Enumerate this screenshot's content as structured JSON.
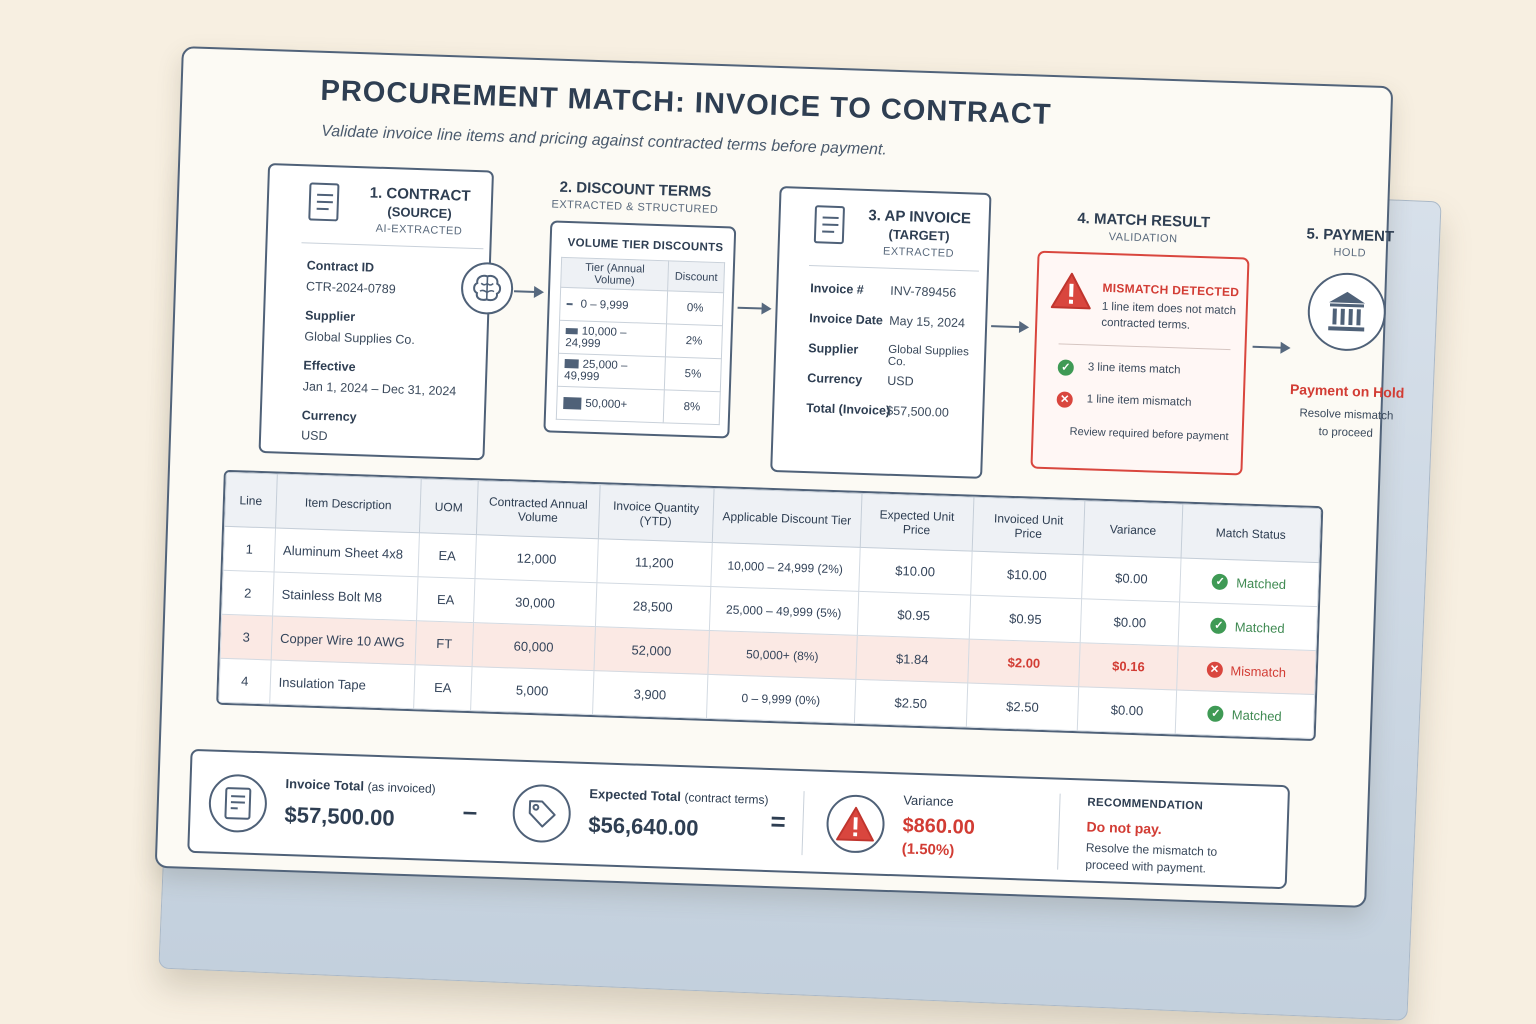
{
  "header": {
    "title": "PROCUREMENT MATCH: INVOICE TO CONTRACT",
    "subtitle": "Validate invoice line items and pricing against contracted terms before payment."
  },
  "contract": {
    "title_line1": "1. CONTRACT",
    "title_line2": "(SOURCE)",
    "sub": "AI-EXTRACTED",
    "fields": [
      {
        "label": "Contract ID",
        "value": "CTR-2024-0789"
      },
      {
        "label": "Supplier",
        "value": "Global Supplies Co."
      },
      {
        "label": "Effective",
        "value": "Jan 1, 2024 – Dec 31, 2024"
      },
      {
        "label": "Currency",
        "value": "USD"
      }
    ],
    "icon": "document-icon"
  },
  "ai_icon": "brain-icon",
  "discount": {
    "title": "2. DISCOUNT TERMS",
    "sub": "EXTRACTED & STRUCTURED",
    "table_title": "VOLUME TIER DISCOUNTS",
    "col_tier": "Tier (Annual Volume)",
    "col_discount": "Discount",
    "tiers": [
      {
        "range": "0 – 9,999",
        "discount": "0%"
      },
      {
        "range": "10,000 – 24,999",
        "discount": "2%"
      },
      {
        "range": "25,000 – 49,999",
        "discount": "5%"
      },
      {
        "range": "50,000+",
        "discount": "8%"
      }
    ]
  },
  "invoice": {
    "title_line1": "3. AP INVOICE",
    "title_line2": "(TARGET)",
    "sub": "EXTRACTED",
    "fields": [
      {
        "label": "Invoice #",
        "value": "INV-789456"
      },
      {
        "label": "Invoice Date",
        "value": "May 15, 2024"
      },
      {
        "label": "Supplier",
        "value": "Global Supplies Co."
      },
      {
        "label": "Currency",
        "value": "USD"
      },
      {
        "label": "Total (Invoice)",
        "value": "$57,500.00"
      }
    ]
  },
  "match": {
    "title": "4. MATCH RESULT",
    "sub": "VALIDATION",
    "alert_title": "MISMATCH DETECTED",
    "alert_text_1": "1 line item does not match",
    "alert_text_2": "contracted terms.",
    "ok_text": "3 line items match",
    "bad_text": "1 line item mismatch",
    "footer": "Review required before payment"
  },
  "payment": {
    "title": "5. PAYMENT",
    "sub": "HOLD",
    "status": "Payment on Hold",
    "note_1": "Resolve mismatch",
    "note_2": "to proceed",
    "icon": "bank-icon"
  },
  "table": {
    "headers": [
      "Line",
      "Item Description",
      "UOM",
      "Contracted Annual Volume",
      "Invoice Quantity (YTD)",
      "Applicable Discount Tier",
      "Expected Unit Price",
      "Invoiced Unit Price",
      "Variance",
      "Match Status"
    ],
    "rows": [
      {
        "line": "1",
        "item": "Aluminum Sheet 4x8",
        "uom": "EA",
        "contracted": "12,000",
        "qty": "11,200",
        "tier": "10,000 – 24,999 (2%)",
        "expected": "$10.00",
        "invoiced": "$10.00",
        "variance": "$0.00",
        "status": "Matched"
      },
      {
        "line": "2",
        "item": "Stainless Bolt M8",
        "uom": "EA",
        "contracted": "30,000",
        "qty": "28,500",
        "tier": "25,000 – 49,999 (5%)",
        "expected": "$0.95",
        "invoiced": "$0.95",
        "variance": "$0.00",
        "status": "Matched"
      },
      {
        "line": "3",
        "item": "Copper Wire 10 AWG",
        "uom": "FT",
        "contracted": "60,000",
        "qty": "52,000",
        "tier": "50,000+ (8%)",
        "expected": "$1.84",
        "invoiced": "$2.00",
        "variance": "$0.16",
        "status": "Mismatch"
      },
      {
        "line": "4",
        "item": "Insulation Tape",
        "uom": "EA",
        "contracted": "5,000",
        "qty": "3,900",
        "tier": "0 – 9,999 (0%)",
        "expected": "$2.50",
        "invoiced": "$2.50",
        "variance": "$0.00",
        "status": "Matched"
      }
    ]
  },
  "summary": {
    "invoice_label": "Invoice Total",
    "invoice_label_note": "(as invoiced)",
    "invoice_value": "$57,500.00",
    "minus": "–",
    "expected_label": "Expected Total",
    "expected_label_note": "(contract terms)",
    "expected_value": "$56,640.00",
    "equals": "=",
    "variance_label": "Variance",
    "variance_value": "$860.00",
    "variance_pct": "(1.50%)",
    "rec_title": "RECOMMENDATION",
    "rec_main": "Do not pay.",
    "rec_text_1": "Resolve the mismatch to",
    "rec_text_2": "proceed with payment."
  },
  "colors": {
    "accent_red": "#d23c34",
    "accent_green": "#3f9a55",
    "ink": "#2e3e52"
  }
}
